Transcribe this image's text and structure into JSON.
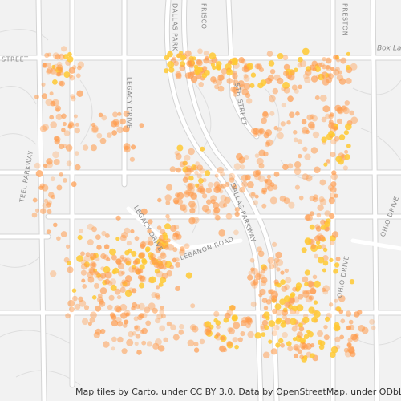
{
  "map": {
    "labels": [
      "STREET",
      "DALLAS PARK",
      "FRISCO",
      "PRESTON",
      "Box La",
      "LEGACY DRIVE",
      "TEEL PARKWAY",
      "LEGACY DRIVE",
      "LEBANON ROAD",
      "DALLAS PARKWAY",
      "5TH STREET",
      "OHIO DRIVE",
      "OHIO DRIVE"
    ],
    "attribution": "Map tiles by Carto, under CC BY 3.0. Data by OpenStreetMap, under ODbL."
  }
}
